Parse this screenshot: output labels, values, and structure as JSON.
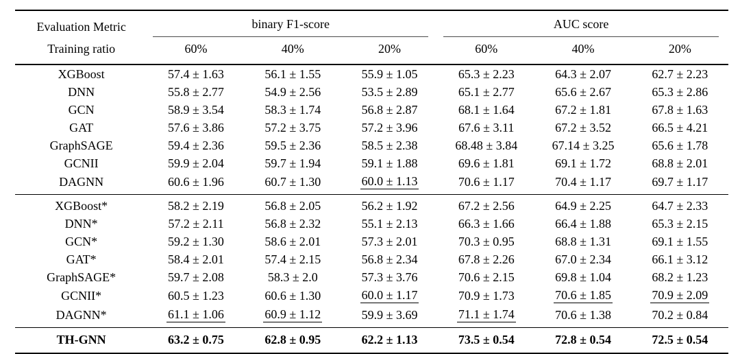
{
  "table": {
    "header": {
      "metric_label": "Evaluation Metric",
      "ratio_label": "Training ratio",
      "groups": [
        {
          "label": "binary F1-score"
        },
        {
          "label": "AUC score"
        }
      ],
      "ratios": [
        "60%",
        "40%",
        "20%",
        "60%",
        "40%",
        "20%"
      ]
    },
    "sections": [
      {
        "rows": [
          {
            "model": "XGBoost",
            "values": [
              "57.4 ± 1.63",
              "56.1 ± 1.55",
              "55.9 ± 1.05",
              "65.3 ± 2.23",
              "64.3 ± 2.07",
              "62.7 ± 2.23"
            ],
            "underline": [
              false,
              false,
              false,
              false,
              false,
              false
            ],
            "bold": false
          },
          {
            "model": "DNN",
            "values": [
              "55.8 ± 2.77",
              "54.9 ± 2.56",
              "53.5 ± 2.89",
              "65.1 ± 2.77",
              "65.6 ± 2.67",
              "65.3 ± 2.86"
            ],
            "underline": [
              false,
              false,
              false,
              false,
              false,
              false
            ],
            "bold": false
          },
          {
            "model": "GCN",
            "values": [
              "58.9 ± 3.54",
              "58.3 ± 1.74",
              "56.8 ± 2.87",
              "68.1 ± 1.64",
              "67.2 ± 1.81",
              "67.8 ± 1.63"
            ],
            "underline": [
              false,
              false,
              false,
              false,
              false,
              false
            ],
            "bold": false
          },
          {
            "model": "GAT",
            "values": [
              "57.6 ± 3.86",
              "57.2 ± 3.75",
              "57.2 ± 3.96",
              "67.6 ± 3.11",
              "67.2 ± 3.52",
              "66.5 ± 4.21"
            ],
            "underline": [
              false,
              false,
              false,
              false,
              false,
              false
            ],
            "bold": false
          },
          {
            "model": "GraphSAGE",
            "values": [
              "59.4 ± 2.36",
              "59.5 ± 2.36",
              "58.5 ± 2.38",
              "68.48 ± 3.84",
              "67.14 ± 3.25",
              "65.6 ± 1.78"
            ],
            "underline": [
              false,
              false,
              false,
              false,
              false,
              false
            ],
            "bold": false
          },
          {
            "model": "GCNII",
            "values": [
              "59.9 ± 2.04",
              "59.7 ± 1.94",
              "59.1 ± 1.88",
              "69.6 ± 1.81",
              "69.1 ± 1.72",
              "68.8 ± 2.01"
            ],
            "underline": [
              false,
              false,
              false,
              false,
              false,
              false
            ],
            "bold": false
          },
          {
            "model": "DAGNN",
            "values": [
              "60.6 ± 1.96",
              "60.7 ± 1.30",
              "60.0 ± 1.13",
              "70.6 ± 1.17",
              "70.4 ± 1.17",
              "69.7 ± 1.17"
            ],
            "underline": [
              false,
              false,
              true,
              false,
              false,
              false
            ],
            "bold": false
          }
        ]
      },
      {
        "rows": [
          {
            "model": "XGBoost*",
            "values": [
              "58.2 ± 2.19",
              "56.8 ± 2.05",
              "56.2 ± 1.92",
              "67.2 ± 2.56",
              "64.9 ± 2.25",
              "64.7 ± 2.33"
            ],
            "underline": [
              false,
              false,
              false,
              false,
              false,
              false
            ],
            "bold": false
          },
          {
            "model": "DNN*",
            "values": [
              "57.2 ± 2.11",
              "56.8 ± 2.32",
              "55.1 ± 2.13",
              "66.3 ± 1.66",
              "66.4 ± 1.88",
              "65.3 ± 2.15"
            ],
            "underline": [
              false,
              false,
              false,
              false,
              false,
              false
            ],
            "bold": false
          },
          {
            "model": "GCN*",
            "values": [
              "59.2 ± 1.30",
              "58.6 ± 2.01",
              "57.3 ± 2.01",
              "70.3 ± 0.95",
              "68.8 ± 1.31",
              "69.1 ± 1.55"
            ],
            "underline": [
              false,
              false,
              false,
              false,
              false,
              false
            ],
            "bold": false
          },
          {
            "model": "GAT*",
            "values": [
              "58.4 ± 2.01",
              "57.4 ± 2.15",
              "56.8 ± 2.34",
              "67.8 ± 2.26",
              "67.0 ± 2.34",
              "66.1 ± 3.12"
            ],
            "underline": [
              false,
              false,
              false,
              false,
              false,
              false
            ],
            "bold": false
          },
          {
            "model": "GraphSAGE*",
            "values": [
              "59.7 ± 2.08",
              "58.3 ± 2.0",
              "57.3 ± 3.76",
              "70.6 ± 2.15",
              "69.8 ± 1.04",
              "68.2 ± 1.23"
            ],
            "underline": [
              false,
              false,
              false,
              false,
              false,
              false
            ],
            "bold": false
          },
          {
            "model": "GCNII*",
            "values": [
              "60.5 ± 1.23",
              "60.6 ± 1.30",
              "60.0 ± 1.17",
              "70.9 ± 1.73",
              "70.6 ± 1.85",
              "70.9 ± 2.09"
            ],
            "underline": [
              false,
              false,
              true,
              false,
              true,
              true
            ],
            "bold": false
          },
          {
            "model": "DAGNN*",
            "values": [
              "61.1 ± 1.06",
              "60.9 ± 1.12",
              "59.9 ± 3.69",
              "71.1 ± 1.74",
              "70.6 ± 1.38",
              "70.2 ± 0.84"
            ],
            "underline": [
              true,
              true,
              false,
              true,
              false,
              false
            ],
            "bold": false
          }
        ]
      },
      {
        "rows": [
          {
            "model": "TH-GNN",
            "values": [
              "63.2 ± 0.75",
              "62.8 ± 0.95",
              "62.2 ± 1.13",
              "73.5 ± 0.54",
              "72.8 ± 0.54",
              "72.5 ± 0.54"
            ],
            "underline": [
              false,
              false,
              false,
              false,
              false,
              false
            ],
            "bold": true
          }
        ]
      }
    ]
  }
}
